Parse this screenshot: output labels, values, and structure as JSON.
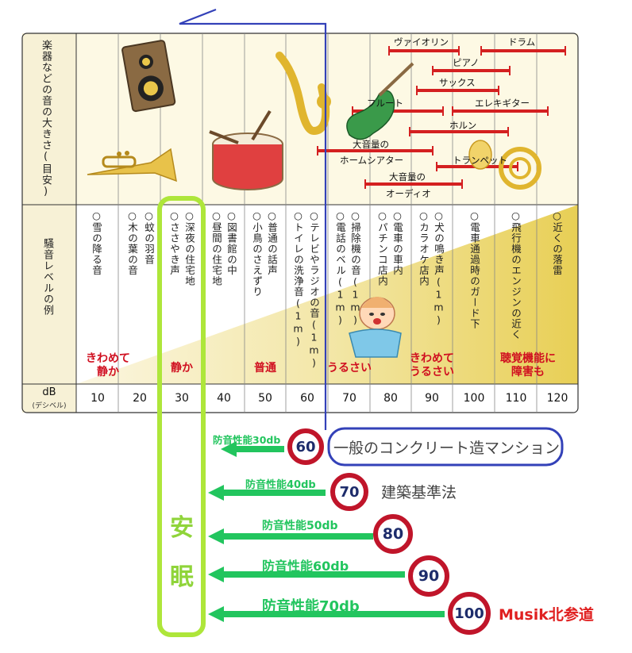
{
  "row_headers": {
    "instruments": "楽器などの音の大きさ(目安)",
    "examples": "騒音レベルの例",
    "db_label": "dB",
    "db_sub": "(デシベル)"
  },
  "db_values": [
    "10",
    "20",
    "30",
    "40",
    "50",
    "60",
    "70",
    "80",
    "90",
    "100",
    "110",
    "120"
  ],
  "noise_examples": [
    [
      "○雪の降る音"
    ],
    [
      "○蚊の羽音",
      "○木の葉の音"
    ],
    [
      "○深夜の住宅地",
      "○ささやき声"
    ],
    [
      "○図書館の中",
      "○昼間の住宅地"
    ],
    [
      "○普通の話声",
      "○小鳥のさえずり"
    ],
    [
      "○テレビやラジオの音(1m)",
      "○トイレの洗浄音(1m)"
    ],
    [
      "○掃除機の音(1m)",
      "○電話のベル(1m)"
    ],
    [
      "○電車の車内",
      "○パチンコ店内"
    ],
    [
      "○犬の鳴き声(1m)",
      "○カラオケ店内"
    ],
    [
      "○電車通過時のガード下"
    ],
    [
      "○飛行機のエンジンの近く"
    ],
    [
      "○近くの落雷"
    ]
  ],
  "instruments": {
    "violin": "ヴァイオリン",
    "drum": "ドラム",
    "piano": "ピアノ",
    "sax": "サックス",
    "flute": "フルート",
    "eguitar": "エレキギター",
    "horn": "ホルン",
    "hometheater_1": "大音量の",
    "hometheater_2": "ホームシアター",
    "trumpet": "トランペット",
    "audio_1": "大音量の",
    "audio_2": "オーディオ"
  },
  "levels": {
    "very_quiet_1": "きわめて",
    "very_quiet_2": "静か",
    "quiet": "静か",
    "normal": "普通",
    "noisy": "うるさい",
    "very_noisy_1": "きわめて",
    "very_noisy_2": "うるさい",
    "hearing_1": "聴覚機能に",
    "hearing_2": "障害も"
  },
  "sleep_label_1": "安",
  "sleep_label_2": "眠",
  "soundproofing": [
    {
      "label": "防音性能30db",
      "sign": "60"
    },
    {
      "label": "防音性能40db",
      "sign": "70"
    },
    {
      "label": "防音性能50db",
      "sign": "80"
    },
    {
      "label": "防音性能60db",
      "sign": "90"
    },
    {
      "label": "防音性能70db",
      "sign": "100"
    }
  ],
  "notes": {
    "mansion": "一般のコンクリート造マンション",
    "building_law": "建築基準法",
    "brand": "Musik北参道"
  },
  "colors": {
    "bar_red": "#d42020",
    "highlight_green": "#aee63a",
    "arrow_green": "#22c55e",
    "blue_line": "#3341b8",
    "sign_red": "#c0152a"
  }
}
